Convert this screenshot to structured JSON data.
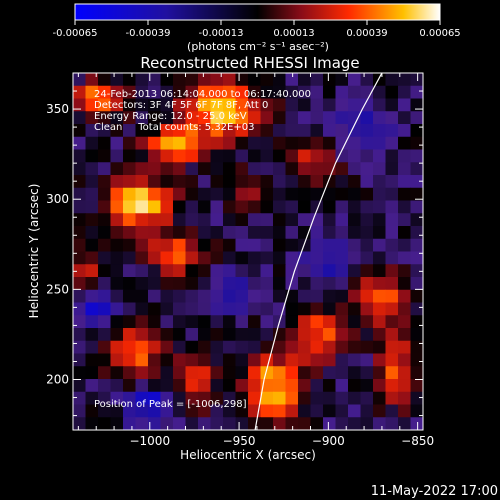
{
  "chart_data": {
    "type": "heatmap",
    "title": "Reconstructed RHESSI Image",
    "xlabel": "Heliocentric X (arcsec)",
    "ylabel": "Heliocentric Y (arcsec)",
    "xlim": [
      -1043,
      -847
    ],
    "ylim": [
      172,
      370
    ],
    "xticks": [
      -1000,
      -950,
      -900,
      -850
    ],
    "xtick_labels": [
      "−1000",
      "−950",
      "−900",
      "−850"
    ],
    "yticks": [
      200,
      250,
      300,
      350
    ],
    "ytick_labels": [
      "200",
      "250",
      "300",
      "350"
    ],
    "info_lines": [
      "24-Feb-2013 06:14:04.000 to 06:17:40.000",
      "Detectors: 3F 4F 5F 6F 7F 8F, Att 0",
      "Energy Range: 12.0 - 25.0 keV",
      "Clean     Total counts: 5.32E+03"
    ],
    "peak_label": "Position of Peak = [-1006,298]",
    "colorbar": {
      "range": [
        -0.00065,
        0.00065
      ],
      "tick_labels": [
        "-0.00065",
        "-0.00039",
        "-0.00013",
        "0.00013",
        "0.00039",
        "0.00065"
      ],
      "unit_label": "(photons cm⁻² s⁻¹ asec⁻²)",
      "colors": [
        "#0000ff",
        "#000000",
        "#ff0000",
        "#ffff00",
        "#ffffff"
      ]
    },
    "limb": [
      [
        -941,
        172
      ],
      [
        -936,
        200
      ],
      [
        -928,
        230
      ],
      [
        -919,
        260
      ],
      [
        -908,
        290
      ],
      [
        -896,
        320
      ],
      [
        -881,
        350
      ],
      [
        -870,
        370
      ]
    ],
    "grid": {
      "cols": 28,
      "rows": 28,
      "hotspots": [
        {
          "x": -1028,
          "y": 355,
          "v": 0.00055,
          "rx": 14,
          "ry": 10
        },
        {
          "x": -960,
          "y": 350,
          "v": 0.0006,
          "rx": 22,
          "ry": 16
        },
        {
          "x": -985,
          "y": 330,
          "v": 0.0005,
          "rx": 18,
          "ry": 10
        },
        {
          "x": -1006,
          "y": 298,
          "v": 0.00065,
          "rx": 18,
          "ry": 14
        },
        {
          "x": -1035,
          "y": 260,
          "v": 0.0004,
          "rx": 10,
          "ry": 12
        },
        {
          "x": -985,
          "y": 270,
          "v": 0.00045,
          "rx": 16,
          "ry": 12
        },
        {
          "x": -1010,
          "y": 215,
          "v": 0.0005,
          "rx": 16,
          "ry": 14
        },
        {
          "x": -975,
          "y": 200,
          "v": 0.0004,
          "rx": 12,
          "ry": 16
        },
        {
          "x": -930,
          "y": 195,
          "v": 0.0006,
          "rx": 16,
          "ry": 20
        },
        {
          "x": -905,
          "y": 225,
          "v": 0.00045,
          "rx": 14,
          "ry": 14
        },
        {
          "x": -870,
          "y": 245,
          "v": 0.0005,
          "rx": 14,
          "ry": 14
        },
        {
          "x": -862,
          "y": 205,
          "v": 0.0004,
          "rx": 10,
          "ry": 20
        },
        {
          "x": -910,
          "y": 320,
          "v": 0.00035,
          "rx": 14,
          "ry": 12
        },
        {
          "x": -945,
          "y": 305,
          "v": 0.0003,
          "rx": 10,
          "ry": 10
        }
      ],
      "coldspots": [
        {
          "x": -1030,
          "y": 240,
          "v": -0.0004,
          "rx": 10,
          "ry": 12
        },
        {
          "x": -1000,
          "y": 185,
          "v": -0.00045,
          "rx": 12,
          "ry": 10
        },
        {
          "x": -955,
          "y": 250,
          "v": -0.0003,
          "rx": 12,
          "ry": 12
        },
        {
          "x": -900,
          "y": 265,
          "v": -0.00025,
          "rx": 14,
          "ry": 12
        },
        {
          "x": -880,
          "y": 340,
          "v": -0.0003,
          "rx": 14,
          "ry": 12
        }
      ]
    }
  },
  "footer": {
    "timestamp": "11-May-2022 17:00"
  }
}
